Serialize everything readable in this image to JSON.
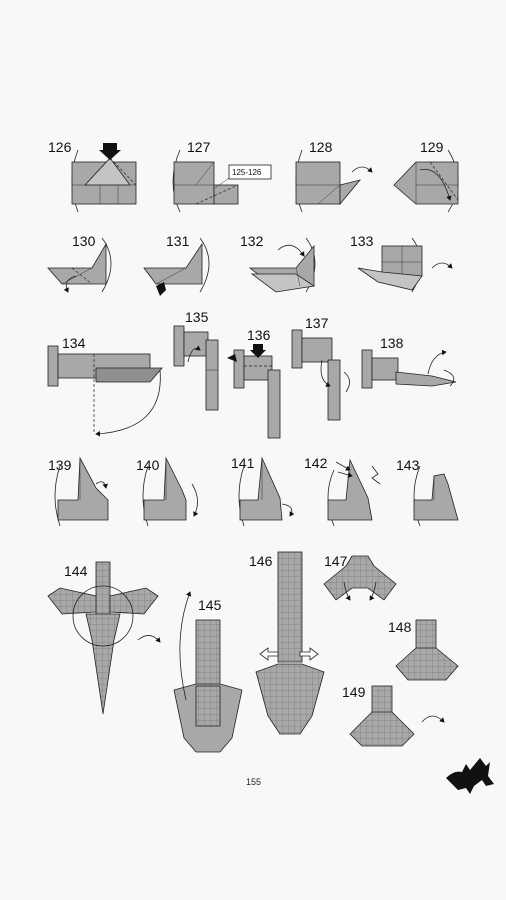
{
  "steps": [
    "126",
    "127",
    "128",
    "129",
    "130",
    "131",
    "132",
    "133",
    "134",
    "135",
    "136",
    "137",
    "138",
    "139",
    "140",
    "141",
    "142",
    "143",
    "144",
    "145",
    "146",
    "147",
    "148",
    "149"
  ],
  "reference_label": "125-126",
  "page_number": "155",
  "logo": "dragon-silhouette"
}
